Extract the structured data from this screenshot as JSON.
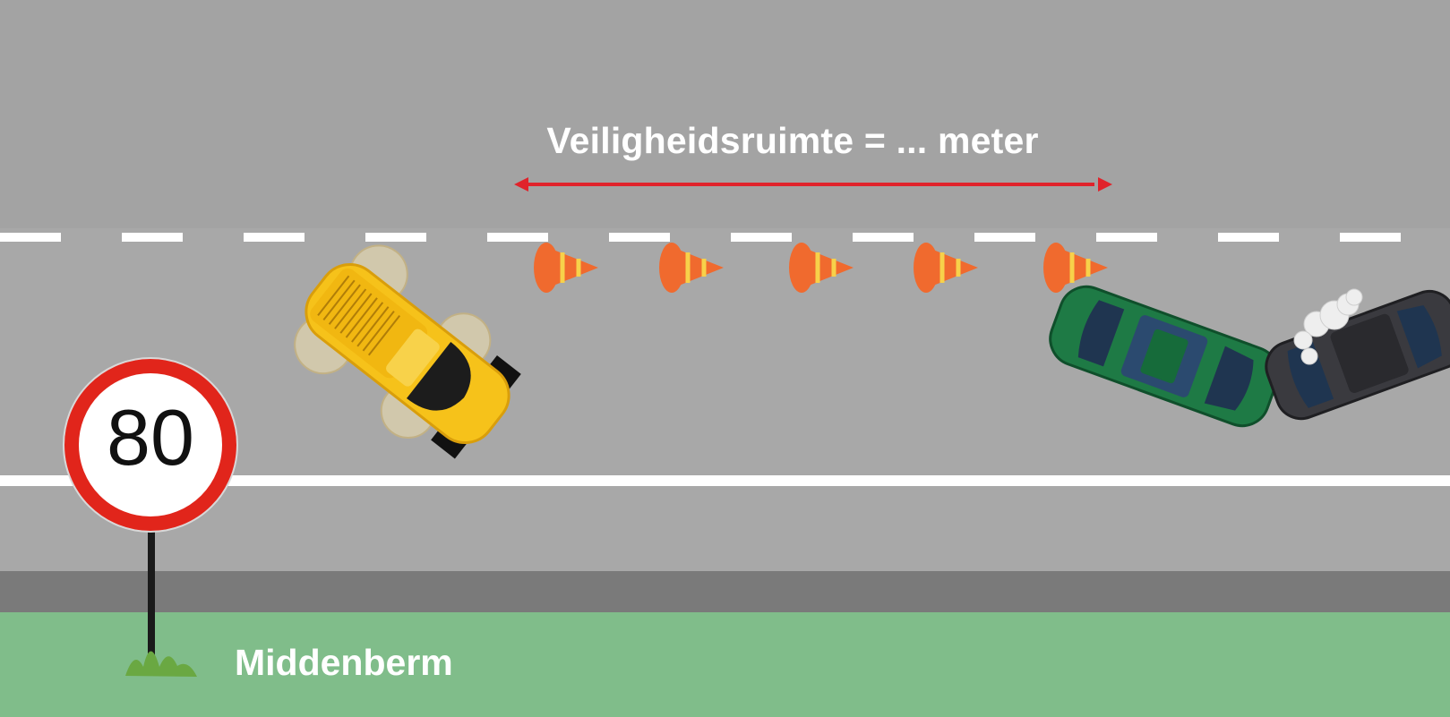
{
  "distance_label": "Veiligheidsruimte = ... meter",
  "speed_sign": {
    "value": "80",
    "type": "speed-limit-sign"
  },
  "median_label": "Middenberm",
  "colors": {
    "road": "#a8a8a8",
    "shoulder": "#7a7a7a",
    "median": "#80bd8a",
    "arrow": "#e0232b",
    "cone": "#f06a2e",
    "cone_stripe": "#f7d14a",
    "yellow_car": "#f6c21a",
    "green_car": "#1e7a45",
    "dark_car": "#3a3a3f"
  },
  "cones": {
    "count": 5
  },
  "vehicles": [
    "yellow-car",
    "green-car",
    "dark-car"
  ]
}
